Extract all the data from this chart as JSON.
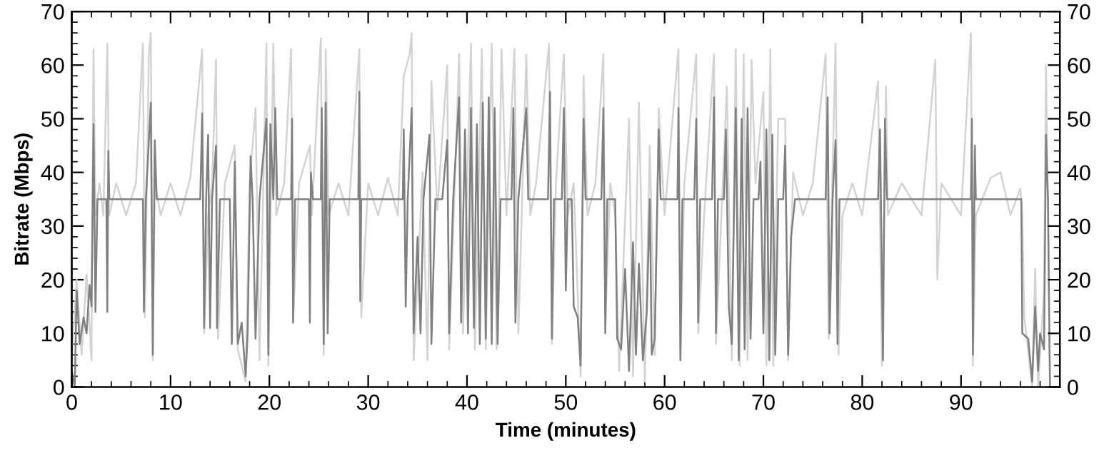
{
  "chart_data": {
    "type": "line",
    "xlabel": "Time (minutes)",
    "ylabel": "Bitrate (Mbps)",
    "xlim": [
      0,
      100
    ],
    "ylim": [
      0,
      70
    ],
    "y2lim": [
      0,
      70
    ],
    "xticks": [
      0,
      {
        "value": 2,
        "label": null
      },
      {
        "value": 4,
        "label": null
      },
      {
        "value": 6,
        "label": null
      },
      {
        "value": 8,
        "label": null
      },
      10,
      {
        "value": 12,
        "label": null
      },
      {
        "value": 14,
        "label": null
      },
      {
        "value": 16,
        "label": null
      },
      {
        "value": 18,
        "label": null
      },
      20,
      {
        "value": 22,
        "label": null
      },
      {
        "value": 24,
        "label": null
      },
      {
        "value": 26,
        "label": null
      },
      {
        "value": 28,
        "label": null
      },
      30,
      {
        "value": 32,
        "label": null
      },
      {
        "value": 34,
        "label": null
      },
      {
        "value": 36,
        "label": null
      },
      {
        "value": 38,
        "label": null
      },
      40,
      {
        "value": 42,
        "label": null
      },
      {
        "value": 44,
        "label": null
      },
      {
        "value": 46,
        "label": null
      },
      {
        "value": 48,
        "label": null
      },
      50,
      {
        "value": 52,
        "label": null
      },
      {
        "value": 54,
        "label": null
      },
      {
        "value": 56,
        "label": null
      },
      {
        "value": 58,
        "label": null
      },
      60,
      {
        "value": 62,
        "label": null
      },
      {
        "value": 64,
        "label": null
      },
      {
        "value": 66,
        "label": null
      },
      {
        "value": 68,
        "label": null
      },
      70,
      {
        "value": 72,
        "label": null
      },
      {
        "value": 74,
        "label": null
      },
      {
        "value": 76,
        "label": null
      },
      {
        "value": 78,
        "label": null
      },
      80,
      {
        "value": 82,
        "label": null
      },
      {
        "value": 84,
        "label": null
      },
      {
        "value": 86,
        "label": null
      },
      {
        "value": 88,
        "label": null
      },
      90,
      {
        "value": 92,
        "label": null
      },
      {
        "value": 94,
        "label": null
      },
      {
        "value": 96,
        "label": null
      },
      {
        "value": 98,
        "label": null
      },
      {
        "value": 100,
        "label": null
      }
    ],
    "yticks": [
      0,
      {
        "value": 2,
        "label": null
      },
      {
        "value": 4,
        "label": null
      },
      {
        "value": 6,
        "label": null
      },
      {
        "value": 8,
        "label": null
      },
      10,
      {
        "value": 12,
        "label": null
      },
      {
        "value": 14,
        "label": null
      },
      {
        "value": 16,
        "label": null
      },
      {
        "value": 18,
        "label": null
      },
      20,
      {
        "value": 22,
        "label": null
      },
      {
        "value": 24,
        "label": null
      },
      {
        "value": 26,
        "label": null
      },
      {
        "value": 28,
        "label": null
      },
      30,
      {
        "value": 32,
        "label": null
      },
      {
        "value": 34,
        "label": null
      },
      {
        "value": 36,
        "label": null
      },
      {
        "value": 38,
        "label": null
      },
      40,
      {
        "value": 42,
        "label": null
      },
      {
        "value": 44,
        "label": null
      },
      {
        "value": 46,
        "label": null
      },
      {
        "value": 48,
        "label": null
      },
      50,
      {
        "value": 52,
        "label": null
      },
      {
        "value": 54,
        "label": null
      },
      {
        "value": 56,
        "label": null
      },
      {
        "value": 58,
        "label": null
      },
      60,
      {
        "value": 62,
        "label": null
      },
      {
        "value": 64,
        "label": null
      },
      {
        "value": 66,
        "label": null
      },
      {
        "value": 68,
        "label": null
      },
      70
    ],
    "y2ticks": [
      0,
      {
        "value": 2,
        "label": null
      },
      {
        "value": 4,
        "label": null
      },
      {
        "value": 6,
        "label": null
      },
      {
        "value": 8,
        "label": null
      },
      10,
      {
        "value": 12,
        "label": null
      },
      {
        "value": 14,
        "label": null
      },
      {
        "value": 16,
        "label": null
      },
      {
        "value": 18,
        "label": null
      },
      20,
      {
        "value": 22,
        "label": null
      },
      {
        "value": 24,
        "label": null
      },
      {
        "value": 26,
        "label": null
      },
      {
        "value": 28,
        "label": null
      },
      30,
      {
        "value": 32,
        "label": null
      },
      {
        "value": 34,
        "label": null
      },
      {
        "value": 36,
        "label": null
      },
      {
        "value": 38,
        "label": null
      },
      40,
      {
        "value": 42,
        "label": null
      },
      {
        "value": 44,
        "label": null
      },
      {
        "value": 46,
        "label": null
      },
      {
        "value": 48,
        "label": null
      },
      50,
      {
        "value": 52,
        "label": null
      },
      {
        "value": 54,
        "label": null
      },
      {
        "value": 56,
        "label": null
      },
      {
        "value": 58,
        "label": null
      },
      60,
      {
        "value": 62,
        "label": null
      },
      {
        "value": 64,
        "label": null
      },
      {
        "value": 66,
        "label": null
      },
      {
        "value": 68,
        "label": null
      },
      70
    ],
    "grid": false,
    "marker": "none",
    "line_style": "solid",
    "series": [
      {
        "color": "#d3d3d3",
        "x": [
          0,
          0.5,
          1,
          1.5,
          2.0,
          2.2,
          2.4,
          2.8,
          3.2,
          3.6,
          3.8,
          4.5,
          5.5,
          6.5,
          7.2,
          7.4,
          7.8,
          8.0,
          8.2,
          8.4,
          9,
          10,
          11,
          12,
          13.2,
          13.4,
          13.8,
          14.2,
          14.6,
          14.8,
          15.5,
          16.5,
          16.8,
          17.6,
          18.0,
          18.6,
          19.0,
          19.7,
          19.9,
          20.4,
          20.7,
          21.5,
          22.2,
          22.4,
          23,
          24.1,
          24.3,
          25.2,
          25.5,
          25.7,
          26,
          27,
          28,
          29.1,
          29.3,
          30,
          31,
          32,
          33,
          33.6,
          34.2,
          34.4,
          34.6,
          35.5,
          36.0,
          36.4,
          37,
          38.0,
          38.2,
          39.2,
          39.6,
          40.4,
          40.8,
          41.5,
          41.9,
          42.5,
          43.0,
          43.5,
          44,
          44.8,
          45.2,
          46.0,
          46.4,
          47,
          48.3,
          48.6,
          49.0,
          49.8,
          50.2,
          50.8,
          51.5,
          51.8,
          52.2,
          53,
          53.8,
          54.0,
          54.5,
          55.0,
          55.4,
          56.4,
          56.8,
          57.4,
          58.0,
          58.5,
          59.0,
          59.4,
          60,
          61.4,
          61.6,
          62,
          63.2,
          63.4,
          64,
          65.0,
          65.2,
          66.3,
          66.8,
          67.2,
          67.6,
          68.0,
          68.4,
          68.8,
          69.2,
          70.0,
          70.3,
          70.7,
          71.0,
          71.5,
          72.2,
          72.5,
          73,
          74,
          75,
          76.3,
          76.6,
          77.3,
          77.6,
          78,
          79,
          80,
          81.6,
          82.0,
          82.4,
          82.6,
          84,
          86,
          87.4,
          87.6,
          88,
          90,
          91.0,
          91.2,
          91.5,
          93,
          94,
          95,
          96.0,
          96.2,
          96.4,
          97.2,
          97.5,
          97.8,
          98.4,
          98.6,
          98.8,
          99.0,
          99.5
        ],
        "values": [
          5,
          20,
          6,
          21,
          5,
          63,
          32,
          38,
          32,
          64,
          32,
          38,
          32,
          38,
          64,
          13,
          62,
          66,
          5,
          38,
          32,
          38,
          32,
          39,
          63,
          10,
          32,
          38,
          61,
          9,
          38,
          45,
          7,
          1,
          38,
          52,
          5,
          64,
          4,
          64,
          32,
          38,
          63,
          12,
          38,
          45,
          32,
          65,
          6,
          63,
          32,
          38,
          32,
          63,
          13,
          38,
          32,
          39,
          32,
          58,
          62,
          66,
          5,
          40,
          5,
          57,
          33,
          60,
          7,
          62,
          10,
          64,
          7,
          63,
          7,
          64,
          7,
          63,
          32,
          63,
          10,
          62,
          32,
          38,
          64,
          8,
          38,
          62,
          32,
          38,
          2,
          58,
          32,
          38,
          62,
          12,
          38,
          32,
          3,
          50,
          2,
          53,
          1,
          45,
          6,
          52,
          32,
          63,
          5,
          38,
          62,
          10,
          32,
          62,
          8,
          56,
          5,
          63,
          4,
          62,
          5,
          61,
          38,
          55,
          4,
          63,
          4,
          50,
          50,
          5,
          40,
          32,
          38,
          62,
          9,
          64,
          6,
          32,
          38,
          32,
          57,
          4,
          56,
          32,
          38,
          32,
          61,
          20,
          38,
          32,
          66,
          4,
          32,
          39,
          40,
          32,
          37,
          32,
          13,
          0,
          22,
          0,
          18,
          60,
          32,
          0,
          0
        ]
      },
      {
        "color": "#808080",
        "x": [
          0,
          0.3,
          0.5,
          0.8,
          1.2,
          1.5,
          1.8,
          2.0,
          2.2,
          2.4,
          2.6,
          3.5,
          3.6,
          3.7,
          3.8,
          7.2,
          7.3,
          7.5,
          8.0,
          8.2,
          8.4,
          8.6,
          13.0,
          13.2,
          13.4,
          13.6,
          13.8,
          14.0,
          14.2,
          14.6,
          14.7,
          15,
          16.0,
          16.2,
          16.5,
          16.8,
          17.2,
          17.6,
          17.8,
          18.1,
          18.3,
          18.6,
          19.0,
          19.7,
          19.9,
          20.1,
          20.4,
          20.6,
          20.8,
          22.2,
          22.3,
          22.4,
          22.6,
          24.0,
          24.1,
          24.2,
          24.4,
          25.2,
          25.3,
          25.5,
          25.7,
          25.9,
          26.1,
          29.0,
          29.1,
          29.2,
          29.3,
          33.5,
          33.6,
          33.8,
          34.0,
          34.4,
          34.6,
          35,
          35.3,
          35.6,
          36.2,
          36.4,
          36.8,
          37.5,
          38.0,
          38.2,
          38.6,
          39.2,
          39.4,
          39.8,
          40.1,
          40.4,
          40.7,
          41.0,
          41.3,
          41.6,
          41.9,
          42.2,
          42.5,
          42.8,
          43.1,
          43.4,
          44.5,
          44.7,
          44.9,
          45.2,
          46.0,
          46.2,
          48.2,
          48.4,
          48.6,
          48.8,
          49.6,
          49.8,
          50.0,
          50.2,
          50.6,
          50.8,
          51.2,
          51.5,
          51.8,
          52.0,
          53.6,
          53.8,
          54.0,
          54.2,
          55.0,
          55.2,
          55.6,
          56.0,
          56.4,
          56.8,
          57.1,
          57.4,
          57.8,
          58.2,
          58.5,
          58.7,
          59.0,
          59.4,
          59.6,
          61.3,
          61.4,
          61.6,
          61.8,
          63.0,
          63.2,
          63.4,
          63.6,
          64.8,
          65.0,
          65.2,
          65.4,
          66.0,
          66.2,
          66.5,
          66.8,
          67.2,
          67.5,
          67.8,
          68.1,
          68.4,
          68.7,
          69.0,
          69.5,
          69.7,
          70.0,
          70.3,
          70.6,
          70.9,
          71.2,
          71.5,
          72.0,
          72.2,
          72.5,
          72.8,
          73.2,
          76.3,
          76.5,
          76.7,
          77.0,
          77.3,
          77.5,
          77.7,
          81.6,
          81.8,
          82.1,
          82.3,
          82.5,
          91.0,
          91.1,
          91.2,
          91.4,
          91.5,
          96.1,
          96.2,
          96.8,
          97.2,
          97.5,
          97.8,
          98.0,
          98.4,
          98.6,
          98.8,
          99.0,
          99.5
        ],
        "values": [
          3,
          0,
          18,
          8,
          13,
          10,
          19,
          15,
          49,
          14,
          35,
          35,
          14,
          44,
          35,
          35,
          14,
          35,
          53,
          6,
          46,
          35,
          35,
          51,
          11,
          35,
          47,
          11,
          35,
          45,
          11,
          35,
          35,
          8,
          42,
          8,
          12,
          2,
          10,
          43,
          35,
          9,
          35,
          50,
          6,
          49,
          35,
          52,
          35,
          35,
          50,
          12,
          35,
          35,
          12,
          40,
          35,
          35,
          52,
          8,
          53,
          10,
          35,
          35,
          55,
          16,
          35,
          35,
          48,
          15,
          35,
          52,
          10,
          28,
          10,
          35,
          47,
          8,
          35,
          35,
          46,
          10,
          35,
          54,
          12,
          48,
          10,
          52,
          11,
          49,
          8,
          53,
          9,
          54,
          8,
          52,
          8,
          35,
          35,
          52,
          12,
          35,
          52,
          35,
          35,
          55,
          9,
          35,
          35,
          52,
          18,
          35,
          35,
          15,
          13,
          4,
          50,
          35,
          35,
          52,
          10,
          35,
          35,
          9,
          7,
          22,
          3,
          27,
          6,
          23,
          5,
          14,
          35,
          6,
          9,
          48,
          35,
          35,
          52,
          5,
          35,
          35,
          50,
          12,
          35,
          35,
          54,
          10,
          35,
          35,
          48,
          15,
          8,
          52,
          5,
          50,
          7,
          52,
          9,
          35,
          35,
          42,
          10,
          48,
          5,
          47,
          6,
          35,
          35,
          45,
          6,
          28,
          35,
          35,
          54,
          10,
          35,
          46,
          8,
          35,
          35,
          48,
          5,
          50,
          35,
          35,
          50,
          6,
          45,
          35,
          35,
          10,
          9,
          1,
          15,
          3,
          10,
          7,
          47,
          35,
          0,
          0
        ]
      }
    ]
  }
}
